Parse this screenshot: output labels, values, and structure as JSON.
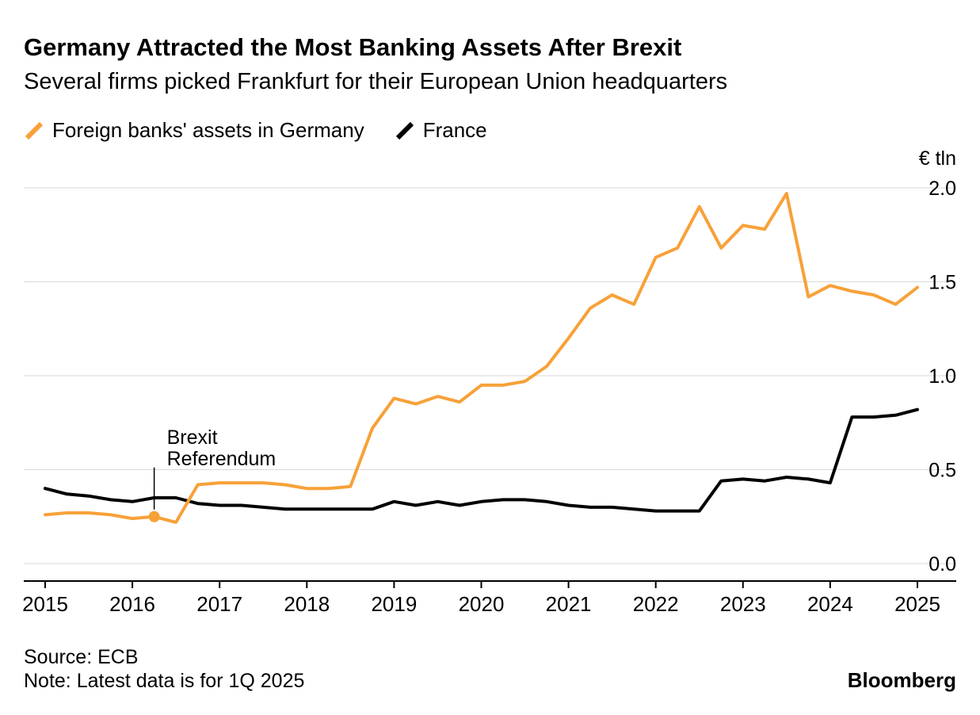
{
  "header": {
    "title": "Germany Attracted the Most Banking Assets After Brexit",
    "subtitle": "Several firms picked Frankfurt for their European Union headquarters"
  },
  "legend": [
    {
      "label": "Foreign banks' assets in Germany",
      "color": "#F7A139"
    },
    {
      "label": "France",
      "color": "#000000"
    }
  ],
  "footer": {
    "source": "Source: ECB",
    "note": "Note: Latest data is for 1Q 2025",
    "brand": "Bloomberg"
  },
  "chart_data": {
    "type": "line",
    "title": "Germany Attracted the Most Banking Assets After Brexit",
    "subtitle": "Several firms picked Frankfurt for their European Union headquarters",
    "unit_label": "€ tln",
    "grid_color": "#d8d8d8",
    "axis_color": "#000000",
    "text_color": "#000000",
    "xlim": [
      2015,
      2025.45
    ],
    "ylim": [
      0,
      2.0
    ],
    "yticks": [
      0.0,
      0.5,
      1.0,
      1.5,
      2.0
    ],
    "ytick_labels": [
      "0.0",
      "0.5",
      "1.0",
      "1.5",
      "2.0"
    ],
    "xticks": [
      2015,
      2016,
      2017,
      2018,
      2019,
      2020,
      2021,
      2022,
      2023,
      2024,
      2025
    ],
    "xtick_labels": [
      "2015",
      "2016",
      "2017",
      "2018",
      "2019",
      "2020",
      "2021",
      "2022",
      "2023",
      "2024",
      "2025"
    ],
    "x": [
      2015.0,
      2015.25,
      2015.5,
      2015.75,
      2016.0,
      2016.25,
      2016.5,
      2016.75,
      2017.0,
      2017.25,
      2017.5,
      2017.75,
      2018.0,
      2018.25,
      2018.5,
      2018.75,
      2019.0,
      2019.25,
      2019.5,
      2019.75,
      2020.0,
      2020.25,
      2020.5,
      2020.75,
      2021.0,
      2021.25,
      2021.5,
      2021.75,
      2022.0,
      2022.25,
      2022.5,
      2022.75,
      2023.0,
      2023.25,
      2023.5,
      2023.75,
      2024.0,
      2024.25,
      2024.5,
      2024.75,
      2025.0
    ],
    "series": [
      {
        "id": "germany",
        "name": "Foreign banks' assets in Germany",
        "color": "#F7A139",
        "values": [
          0.26,
          0.27,
          0.27,
          0.26,
          0.24,
          0.25,
          0.22,
          0.42,
          0.43,
          0.43,
          0.43,
          0.42,
          0.4,
          0.4,
          0.41,
          0.72,
          0.88,
          0.85,
          0.89,
          0.86,
          0.95,
          0.95,
          0.97,
          1.05,
          1.2,
          1.36,
          1.43,
          1.38,
          1.63,
          1.68,
          1.9,
          1.68,
          1.8,
          1.78,
          1.97,
          1.42,
          1.48,
          1.45,
          1.43,
          1.38,
          1.47
        ]
      },
      {
        "id": "france",
        "name": "France",
        "color": "#000000",
        "values": [
          0.4,
          0.37,
          0.36,
          0.34,
          0.33,
          0.35,
          0.35,
          0.32,
          0.31,
          0.31,
          0.3,
          0.29,
          0.29,
          0.29,
          0.29,
          0.29,
          0.33,
          0.31,
          0.33,
          0.31,
          0.33,
          0.34,
          0.34,
          0.33,
          0.31,
          0.3,
          0.3,
          0.29,
          0.28,
          0.28,
          0.28,
          0.44,
          0.45,
          0.44,
          0.46,
          0.45,
          0.43,
          0.78,
          0.78,
          0.79,
          0.82
        ]
      }
    ],
    "annotation": {
      "label_lines": [
        "Brexit",
        "Referendum"
      ],
      "x": 2016.25,
      "y": 0.25
    },
    "legend_position": "top-left",
    "grid": "horizontal-only"
  }
}
